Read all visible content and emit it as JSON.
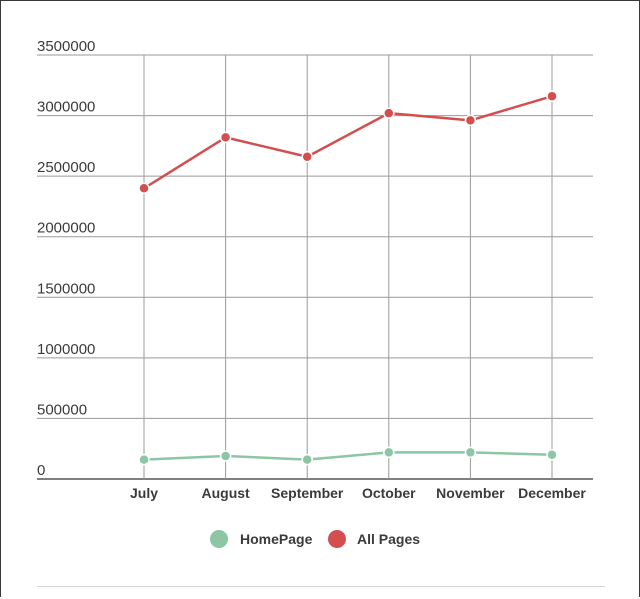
{
  "chart_data": {
    "type": "line",
    "categories": [
      "July",
      "August",
      "September",
      "October",
      "November",
      "December"
    ],
    "series": [
      {
        "name": "HomePage",
        "color": "#8cc6a4",
        "values": [
          160000,
          190000,
          160000,
          220000,
          220000,
          200000
        ]
      },
      {
        "name": "All Pages",
        "color": "#d34f4f",
        "values": [
          2400000,
          2820000,
          2660000,
          3020000,
          2960000,
          3160000
        ]
      }
    ],
    "y_ticks": [
      "3500000",
      "3000000",
      "2500000",
      "2000000",
      "1500000",
      "1000000",
      "500000",
      "0"
    ],
    "ylim": [
      0,
      3500000
    ],
    "grid": true,
    "legend_position": "bottom-center",
    "title": "",
    "xlabel": "",
    "ylabel": ""
  }
}
